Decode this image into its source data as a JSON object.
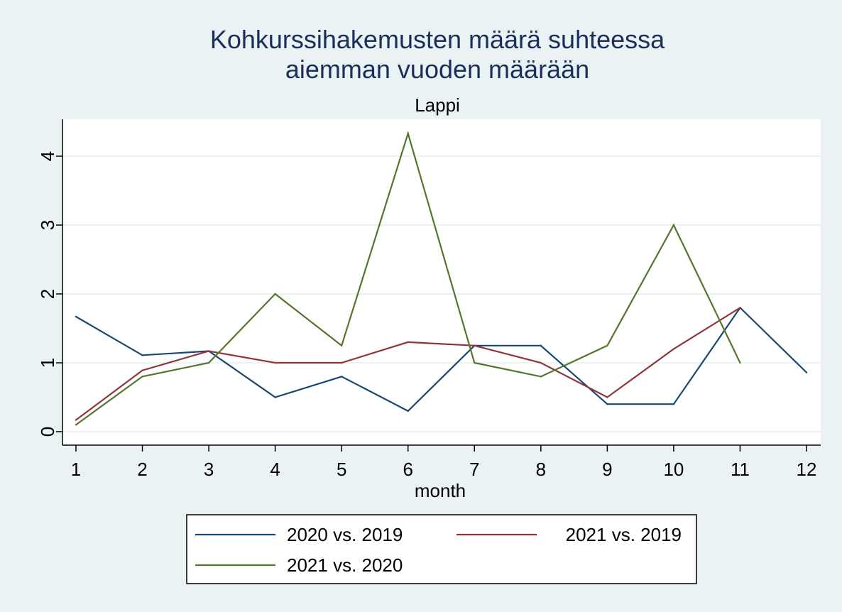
{
  "chart_data": {
    "type": "line",
    "title": [
      "Kohkurssihakemusten määrä suhteessa",
      "aiemman vuoden määrään"
    ],
    "subtitle": "Lappi",
    "xlabel": "month",
    "ylabel": "",
    "x_ticks": [
      "1",
      "2",
      "3",
      "4",
      "5",
      "6",
      "7",
      "8",
      "9",
      "10",
      "11",
      "12"
    ],
    "y_ticks": [
      "0",
      "1",
      "2",
      "3",
      "4"
    ],
    "xlim": [
      1,
      12
    ],
    "ylim": [
      0,
      4.4
    ],
    "grid": true,
    "legend_placement": "bottom",
    "series": [
      {
        "name": "2020 vs. 2019",
        "color": "#1a476f",
        "x": [
          1,
          2,
          3,
          4,
          5,
          6,
          7,
          8,
          9,
          10,
          11,
          12
        ],
        "values": [
          1.67,
          1.11,
          1.17,
          0.5,
          0.8,
          0.3,
          1.25,
          1.25,
          0.4,
          0.4,
          1.8,
          0.86
        ]
      },
      {
        "name": "2021 vs. 2019",
        "color": "#90353b",
        "x": [
          1,
          2,
          3,
          4,
          5,
          6,
          7,
          8,
          9,
          10,
          11
        ],
        "values": [
          0.17,
          0.89,
          1.17,
          1.0,
          1.0,
          1.3,
          1.25,
          1.0,
          0.5,
          1.2,
          1.8
        ]
      },
      {
        "name": "2021 vs. 2020",
        "color": "#55752f",
        "x": [
          1,
          2,
          3,
          4,
          5,
          6,
          7,
          8,
          9,
          10,
          11
        ],
        "values": [
          0.1,
          0.8,
          1.0,
          2.0,
          1.25,
          4.33,
          1.0,
          0.8,
          1.25,
          3.0,
          1.0
        ]
      }
    ]
  }
}
